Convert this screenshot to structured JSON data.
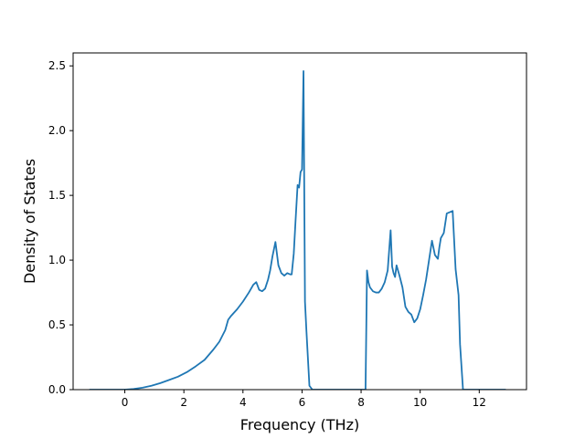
{
  "chart_data": {
    "type": "line",
    "title": "",
    "xlabel": "Frequency (THz)",
    "ylabel": "Density of States",
    "xlim": [
      -1.75,
      13.6
    ],
    "ylim": [
      0,
      2.6
    ],
    "grid": false,
    "legend": "none",
    "x_ticks": [
      0,
      2,
      4,
      6,
      8,
      10,
      12
    ],
    "x_tick_labels": [
      "0",
      "2",
      "4",
      "6",
      "8",
      "10",
      "12"
    ],
    "y_ticks": [
      0.0,
      0.5,
      1.0,
      1.5,
      2.0,
      2.5
    ],
    "y_tick_labels": [
      "0.0",
      "0.5",
      "1.0",
      "1.5",
      "2.0",
      "2.5"
    ],
    "series": [
      {
        "color": "#1f77b4",
        "x": [
          -1.2,
          -0.5,
          0.0,
          0.3,
          0.6,
          0.9,
          1.2,
          1.5,
          1.8,
          2.1,
          2.4,
          2.7,
          3.0,
          3.2,
          3.4,
          3.5,
          3.6,
          3.8,
          4.0,
          4.2,
          4.35,
          4.45,
          4.55,
          4.65,
          4.75,
          4.85,
          4.92,
          5.0,
          5.1,
          5.2,
          5.3,
          5.4,
          5.5,
          5.6,
          5.65,
          5.72,
          5.78,
          5.85,
          5.9,
          5.95,
          6.0,
          6.05,
          6.1,
          6.15,
          6.25,
          6.35,
          6.5,
          7.0,
          7.5,
          8.0,
          8.15,
          8.2,
          8.25,
          8.3,
          8.4,
          8.5,
          8.6,
          8.7,
          8.8,
          8.9,
          9.0,
          9.05,
          9.1,
          9.15,
          9.2,
          9.3,
          9.4,
          9.5,
          9.6,
          9.7,
          9.75,
          9.8,
          9.9,
          10.0,
          10.1,
          10.2,
          10.3,
          10.4,
          10.5,
          10.6,
          10.65,
          10.7,
          10.8,
          10.9,
          11.0,
          11.1,
          11.2,
          11.3,
          11.35,
          11.45,
          11.55,
          11.65,
          11.75,
          12.0,
          12.5,
          12.9
        ],
        "y": [
          0.0,
          0.0,
          0.0,
          0.005,
          0.015,
          0.03,
          0.05,
          0.075,
          0.1,
          0.135,
          0.18,
          0.23,
          0.31,
          0.37,
          0.46,
          0.54,
          0.57,
          0.62,
          0.68,
          0.75,
          0.81,
          0.83,
          0.77,
          0.76,
          0.78,
          0.85,
          0.92,
          1.03,
          1.14,
          0.96,
          0.9,
          0.88,
          0.9,
          0.89,
          0.89,
          1.05,
          1.3,
          1.58,
          1.56,
          1.68,
          1.7,
          2.46,
          0.68,
          0.45,
          0.03,
          0.0,
          0.0,
          0.0,
          0.0,
          0.0,
          0.0,
          0.92,
          0.83,
          0.79,
          0.76,
          0.75,
          0.75,
          0.78,
          0.83,
          0.92,
          1.23,
          0.95,
          0.9,
          0.87,
          0.96,
          0.88,
          0.79,
          0.64,
          0.6,
          0.58,
          0.55,
          0.52,
          0.55,
          0.62,
          0.73,
          0.85,
          1.0,
          1.15,
          1.04,
          1.01,
          1.1,
          1.17,
          1.21,
          1.36,
          1.37,
          1.38,
          0.93,
          0.73,
          0.35,
          0.0,
          0.0,
          0.0,
          0.0,
          0.0,
          0.0,
          0.0
        ]
      }
    ]
  }
}
